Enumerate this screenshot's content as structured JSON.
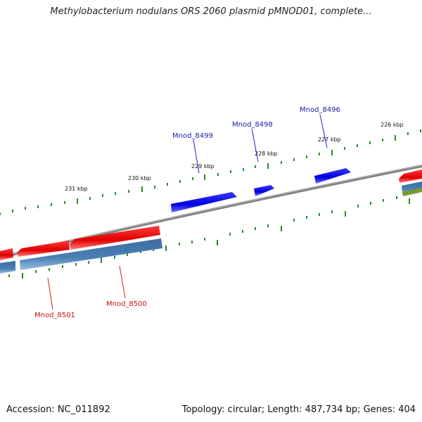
{
  "title": "Methylobacterium nodulans ORS 2060 plasmid pMNOD01, complete...",
  "footer": {
    "accession": "Accession: NC_011892",
    "summary": "Topology: circular; Length: 487,734 bp; Genes: 404"
  },
  "scale_labels": [
    "231 kbp",
    "230 kbp",
    "229 kbp",
    "228 kbp",
    "227 kbp",
    "226 kbp"
  ],
  "gene_labels": [
    {
      "name": "Mnod_8499",
      "strand": "forward"
    },
    {
      "name": "Mnod_8498",
      "strand": "forward"
    },
    {
      "name": "Mnod_8496",
      "strand": "forward"
    },
    {
      "name": "Mnod_8501",
      "strand": "reverse"
    },
    {
      "name": "Mnod_8500",
      "strand": "reverse"
    }
  ],
  "colors": {
    "forward_gene": "#0000ee",
    "reverse_gene": "#ee0000",
    "backbone": "#808080",
    "ticks": "#2a8a2a",
    "cds_track": "#4a7fb5",
    "other_track": "#7a9a30"
  }
}
